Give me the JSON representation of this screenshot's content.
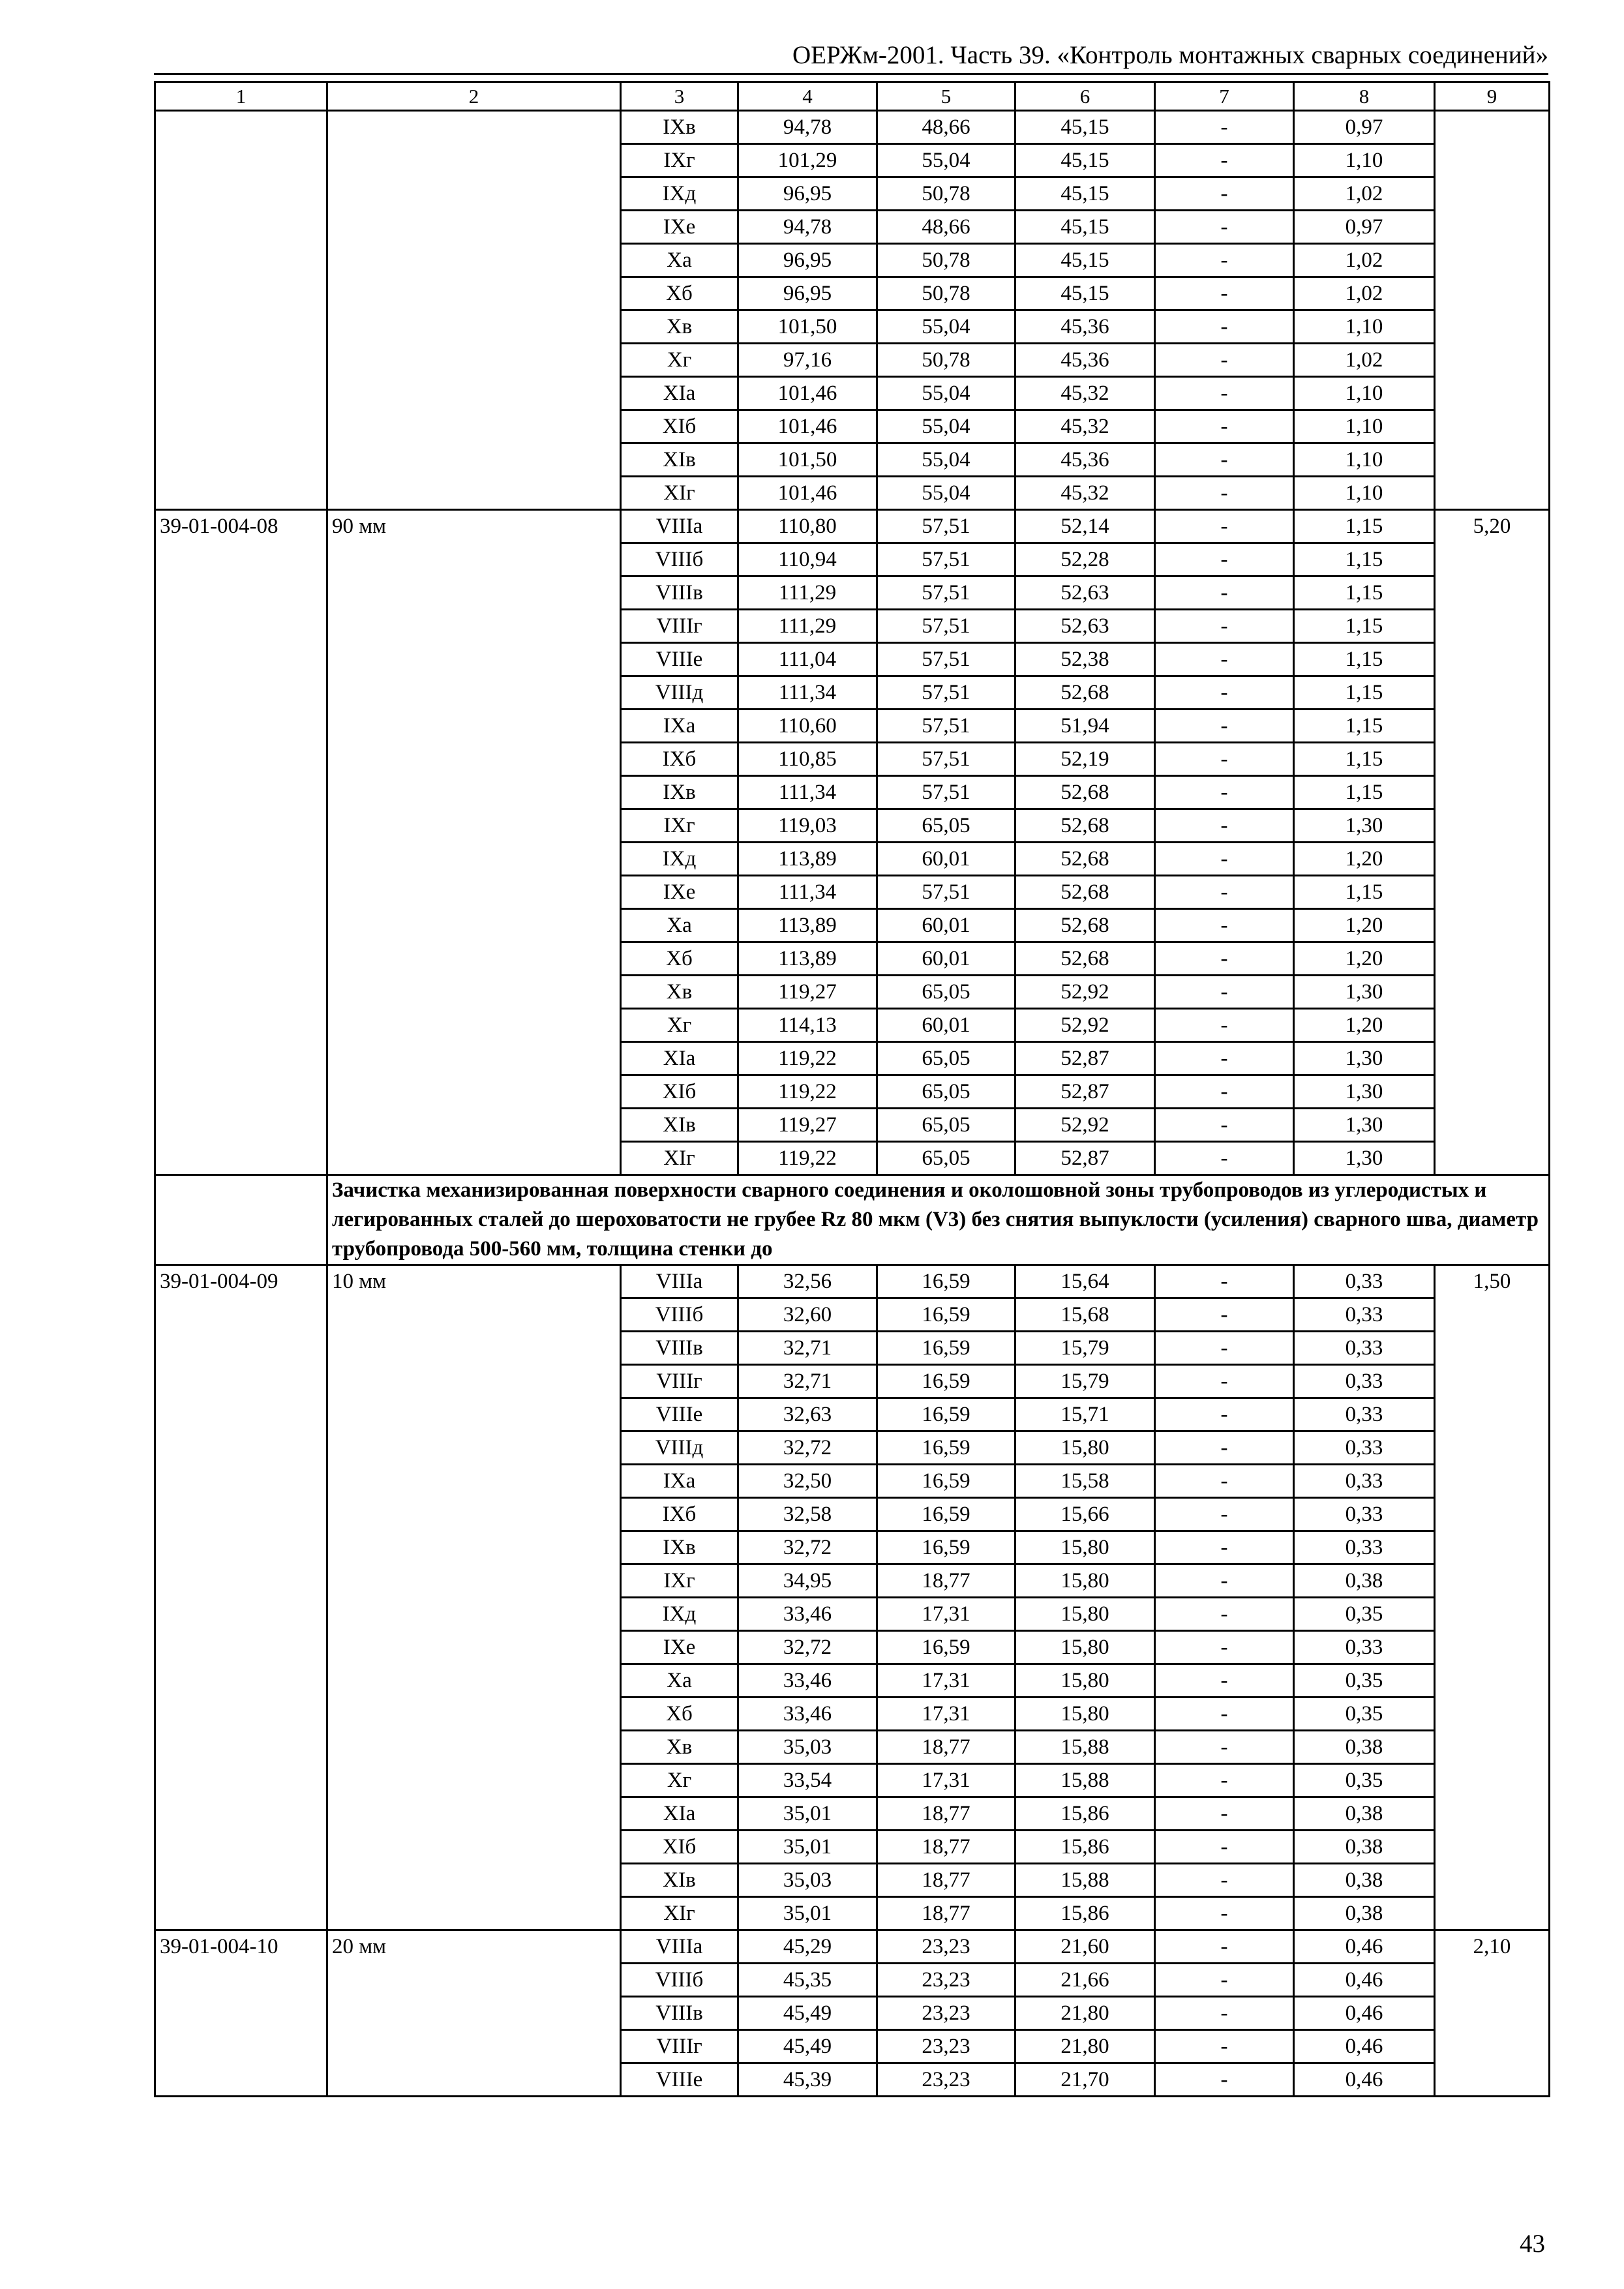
{
  "header": {
    "title": "ОЕРЖм-2001. Часть 39. «Контроль монтажных сварных соединений»"
  },
  "page_number": "43",
  "table": {
    "column_numbers": [
      "1",
      "2",
      "3",
      "4",
      "5",
      "6",
      "7",
      "8",
      "9"
    ],
    "sections": [
      {
        "type": "group",
        "code": "",
        "thickness": "",
        "col9": "",
        "rows": [
          [
            "IXв",
            "94,78",
            "48,66",
            "45,15",
            "-",
            "0,97"
          ],
          [
            "IXг",
            "101,29",
            "55,04",
            "45,15",
            "-",
            "1,10"
          ],
          [
            "IXд",
            "96,95",
            "50,78",
            "45,15",
            "-",
            "1,02"
          ],
          [
            "IXе",
            "94,78",
            "48,66",
            "45,15",
            "-",
            "0,97"
          ],
          [
            "Xа",
            "96,95",
            "50,78",
            "45,15",
            "-",
            "1,02"
          ],
          [
            "Xб",
            "96,95",
            "50,78",
            "45,15",
            "-",
            "1,02"
          ],
          [
            "Xв",
            "101,50",
            "55,04",
            "45,36",
            "-",
            "1,10"
          ],
          [
            "Xг",
            "97,16",
            "50,78",
            "45,36",
            "-",
            "1,02"
          ],
          [
            "XIа",
            "101,46",
            "55,04",
            "45,32",
            "-",
            "1,10"
          ],
          [
            "XIб",
            "101,46",
            "55,04",
            "45,32",
            "-",
            "1,10"
          ],
          [
            "XIв",
            "101,50",
            "55,04",
            "45,36",
            "-",
            "1,10"
          ],
          [
            "XIг",
            "101,46",
            "55,04",
            "45,32",
            "-",
            "1,10"
          ]
        ]
      },
      {
        "type": "group",
        "code": "39-01-004-08",
        "thickness": "90 мм",
        "col9": "5,20",
        "rows": [
          [
            "VIIIа",
            "110,80",
            "57,51",
            "52,14",
            "-",
            "1,15"
          ],
          [
            "VIIIб",
            "110,94",
            "57,51",
            "52,28",
            "-",
            "1,15"
          ],
          [
            "VIIIв",
            "111,29",
            "57,51",
            "52,63",
            "-",
            "1,15"
          ],
          [
            "VIIIг",
            "111,29",
            "57,51",
            "52,63",
            "-",
            "1,15"
          ],
          [
            "VIIIе",
            "111,04",
            "57,51",
            "52,38",
            "-",
            "1,15"
          ],
          [
            "VIIIд",
            "111,34",
            "57,51",
            "52,68",
            "-",
            "1,15"
          ],
          [
            "IXа",
            "110,60",
            "57,51",
            "51,94",
            "-",
            "1,15"
          ],
          [
            "IXб",
            "110,85",
            "57,51",
            "52,19",
            "-",
            "1,15"
          ],
          [
            "IXв",
            "111,34",
            "57,51",
            "52,68",
            "-",
            "1,15"
          ],
          [
            "IXг",
            "119,03",
            "65,05",
            "52,68",
            "-",
            "1,30"
          ],
          [
            "IXд",
            "113,89",
            "60,01",
            "52,68",
            "-",
            "1,20"
          ],
          [
            "IXе",
            "111,34",
            "57,51",
            "52,68",
            "-",
            "1,15"
          ],
          [
            "Xа",
            "113,89",
            "60,01",
            "52,68",
            "-",
            "1,20"
          ],
          [
            "Xб",
            "113,89",
            "60,01",
            "52,68",
            "-",
            "1,20"
          ],
          [
            "Xв",
            "119,27",
            "65,05",
            "52,92",
            "-",
            "1,30"
          ],
          [
            "Xг",
            "114,13",
            "60,01",
            "52,92",
            "-",
            "1,20"
          ],
          [
            "XIа",
            "119,22",
            "65,05",
            "52,87",
            "-",
            "1,30"
          ],
          [
            "XIб",
            "119,22",
            "65,05",
            "52,87",
            "-",
            "1,30"
          ],
          [
            "XIв",
            "119,27",
            "65,05",
            "52,92",
            "-",
            "1,30"
          ],
          [
            "XIг",
            "119,22",
            "65,05",
            "52,87",
            "-",
            "1,30"
          ]
        ]
      },
      {
        "type": "description",
        "text": "Зачистка механизированная поверхности сварного соединения и околошовной зоны трубопроводов из углеродистых и легированных сталей до шероховатости не грубее Rz 80 мкм (V3) без снятия выпуклости (усиления) сварного шва, диаметр трубопровода 500-560 мм, толщина стенки до"
      },
      {
        "type": "group",
        "code": "39-01-004-09",
        "thickness": "10 мм",
        "col9": "1,50",
        "rows": [
          [
            "VIIIа",
            "32,56",
            "16,59",
            "15,64",
            "-",
            "0,33"
          ],
          [
            "VIIIб",
            "32,60",
            "16,59",
            "15,68",
            "-",
            "0,33"
          ],
          [
            "VIIIв",
            "32,71",
            "16,59",
            "15,79",
            "-",
            "0,33"
          ],
          [
            "VIIIг",
            "32,71",
            "16,59",
            "15,79",
            "-",
            "0,33"
          ],
          [
            "VIIIе",
            "32,63",
            "16,59",
            "15,71",
            "-",
            "0,33"
          ],
          [
            "VIIIд",
            "32,72",
            "16,59",
            "15,80",
            "-",
            "0,33"
          ],
          [
            "IXа",
            "32,50",
            "16,59",
            "15,58",
            "-",
            "0,33"
          ],
          [
            "IXб",
            "32,58",
            "16,59",
            "15,66",
            "-",
            "0,33"
          ],
          [
            "IXв",
            "32,72",
            "16,59",
            "15,80",
            "-",
            "0,33"
          ],
          [
            "IXг",
            "34,95",
            "18,77",
            "15,80",
            "-",
            "0,38"
          ],
          [
            "IXд",
            "33,46",
            "17,31",
            "15,80",
            "-",
            "0,35"
          ],
          [
            "IXе",
            "32,72",
            "16,59",
            "15,80",
            "-",
            "0,33"
          ],
          [
            "Xа",
            "33,46",
            "17,31",
            "15,80",
            "-",
            "0,35"
          ],
          [
            "Xб",
            "33,46",
            "17,31",
            "15,80",
            "-",
            "0,35"
          ],
          [
            "Xв",
            "35,03",
            "18,77",
            "15,88",
            "-",
            "0,38"
          ],
          [
            "Xг",
            "33,54",
            "17,31",
            "15,88",
            "-",
            "0,35"
          ],
          [
            "XIа",
            "35,01",
            "18,77",
            "15,86",
            "-",
            "0,38"
          ],
          [
            "XIб",
            "35,01",
            "18,77",
            "15,86",
            "-",
            "0,38"
          ],
          [
            "XIв",
            "35,03",
            "18,77",
            "15,88",
            "-",
            "0,38"
          ],
          [
            "XIг",
            "35,01",
            "18,77",
            "15,86",
            "-",
            "0,38"
          ]
        ]
      },
      {
        "type": "group",
        "code": "39-01-004-10",
        "thickness": "20 мм",
        "col9": "2,10",
        "rows": [
          [
            "VIIIа",
            "45,29",
            "23,23",
            "21,60",
            "-",
            "0,46"
          ],
          [
            "VIIIб",
            "45,35",
            "23,23",
            "21,66",
            "-",
            "0,46"
          ],
          [
            "VIIIв",
            "45,49",
            "23,23",
            "21,80",
            "-",
            "0,46"
          ],
          [
            "VIIIг",
            "45,49",
            "23,23",
            "21,80",
            "-",
            "0,46"
          ],
          [
            "VIIIе",
            "45,39",
            "23,23",
            "21,70",
            "-",
            "0,46"
          ]
        ]
      }
    ]
  }
}
